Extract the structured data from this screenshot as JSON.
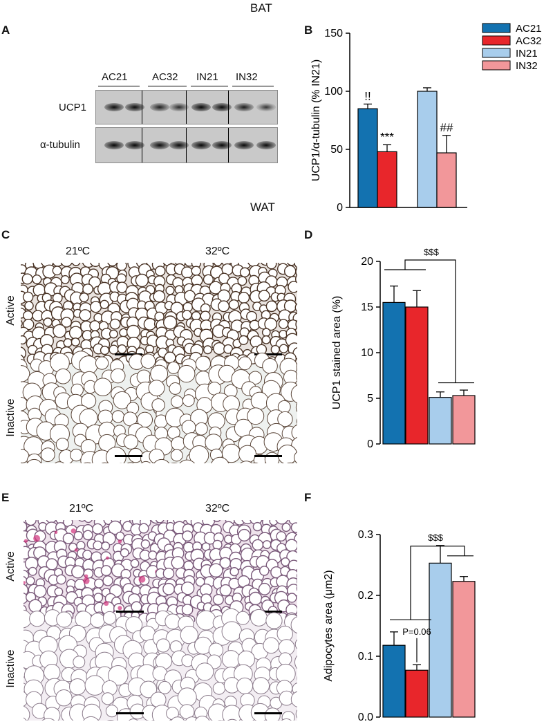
{
  "sections": {
    "top": "BAT",
    "middle": "WAT"
  },
  "panels": {
    "a": "A",
    "b": "B",
    "c": "C",
    "d": "D",
    "e": "E",
    "f": "F"
  },
  "western": {
    "lanes": [
      "AC21",
      "AC32",
      "IN21",
      "IN32"
    ],
    "rows": [
      "UCP1",
      "α-tubulin"
    ],
    "ucp1_intensity": [
      0.85,
      0.85,
      0.6,
      0.45,
      0.9,
      0.88,
      0.65,
      0.3
    ],
    "tubulin_intensity": [
      0.9,
      0.9,
      0.85,
      0.85,
      0.92,
      0.9,
      0.88,
      0.86
    ]
  },
  "micro_c": {
    "cols": [
      "21ºC",
      "32ºC"
    ],
    "rows": [
      "Active",
      "Inactive"
    ]
  },
  "micro_e": {
    "cols": [
      "21ºC",
      "32ºC"
    ],
    "rows": [
      "Active",
      "Inactive"
    ]
  },
  "colors": {
    "AC21": "#1372b0",
    "AC32": "#e8262b",
    "IN21": "#a8cdec",
    "IN32": "#f2979a"
  },
  "chart_data": [
    {
      "type": "bar",
      "id": "B",
      "categories": [
        "AC21",
        "AC32",
        "IN21",
        "IN32"
      ],
      "values": [
        85,
        48,
        100,
        47
      ],
      "errors": [
        4,
        6,
        3,
        15
      ],
      "annotations": [
        "!!",
        "***",
        "",
        "##"
      ],
      "ylabel": "UCP1/α-tubulin (% IN21)",
      "ylim": [
        0,
        150
      ],
      "yticks": [
        "0",
        "50",
        "100",
        "150"
      ],
      "legend": [
        "AC21",
        "AC32",
        "IN21",
        "IN32"
      ],
      "legend_position": "top-right"
    },
    {
      "type": "bar",
      "id": "D",
      "categories": [
        "AC21",
        "AC32",
        "IN21",
        "IN32"
      ],
      "values": [
        15.5,
        15.0,
        5.1,
        5.3
      ],
      "errors": [
        1.8,
        1.8,
        0.6,
        0.6
      ],
      "significance": "$$$",
      "ylabel": "UCP1 stained area (%)",
      "ylim": [
        0,
        20
      ],
      "yticks": [
        "0",
        "5",
        "10",
        "15",
        "20"
      ]
    },
    {
      "type": "bar",
      "id": "F",
      "categories": [
        "AC21",
        "AC32",
        "IN21",
        "IN32"
      ],
      "values": [
        0.118,
        0.077,
        0.253,
        0.223
      ],
      "errors": [
        0.022,
        0.009,
        0.029,
        0.008
      ],
      "significance": "$$$",
      "pvalue": "P=0.06",
      "ylabel": "Adipocytes area (μm2)",
      "ylim": [
        0,
        0.3
      ],
      "yticks": [
        "0.0",
        "0.1",
        "0.2",
        "0.3"
      ]
    }
  ]
}
